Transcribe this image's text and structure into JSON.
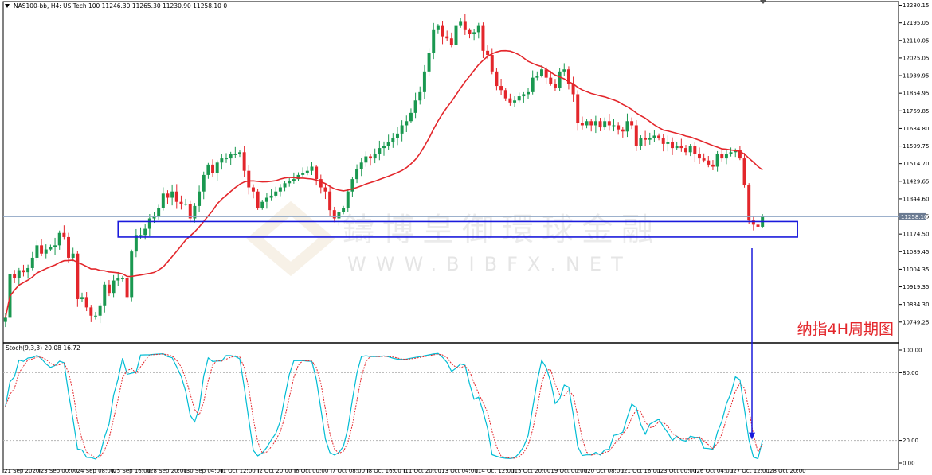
{
  "header": {
    "title": "NAS100-bb, H4:  US Tech 100  11246.30 11265.30 11230.90 11258.10  0",
    "stoch_label": "Stoch(9,3,3) 20.08 16.72"
  },
  "annotation_cn": "纳指4H周期图",
  "watermark": {
    "cn": "鑄博皇御環球金融",
    "en": "WWW.BIBFX.NET"
  },
  "colors": {
    "bull": "#1a9850",
    "bear": "#e3262b",
    "ma": "#e3262b",
    "stoch_k": "#00bcd4",
    "stoch_d": "#e3262b",
    "zone": "#1a1adc",
    "arrow": "#1a1adc"
  },
  "chart_data": [
    {
      "type": "candlestick",
      "symbol": "NAS100-bb",
      "timeframe": "H4",
      "last_price": "11258.10",
      "ylim": [
        10660,
        12290
      ],
      "y_ticks": [
        "12280.15",
        "12195.05",
        "12110.05",
        "12025.05",
        "11939.95",
        "11854.95",
        "11769.85",
        "11684.80",
        "11599.75",
        "11514.70",
        "11429.65",
        "11344.60",
        "11259.55",
        "11174.50",
        "11089.45",
        "11004.35",
        "10919.35",
        "10834.30",
        "10749.25"
      ],
      "x_ticks": [
        "21 Sep 2020",
        "23 Sep 00:00",
        "24 Sep 08:00",
        "25 Sep 16:00",
        "28 Sep 20:00",
        "30 Sep 04:00",
        "1 Oct 12:00",
        "2 Oct 20:00",
        "6 Oct 00:00",
        "7 Oct 08:00",
        "8 Oct 16:00",
        "11 Oct 20:00",
        "13 Oct 04:00",
        "14 Oct 12:00",
        "15 Oct 20:00",
        "19 Oct 00:00",
        "20 Oct 08:00",
        "21 Oct 16:00",
        "23 Oct 00:00",
        "26 Oct 04:00",
        "27 Oct 12:00",
        "28 Oct 20:00"
      ],
      "close": [
        10770,
        10980,
        10960,
        11000,
        10990,
        11010,
        11060,
        11120,
        11080,
        11100,
        11110,
        11120,
        11180,
        11160,
        11060,
        11080,
        10860,
        10870,
        10820,
        10780,
        10780,
        10830,
        10930,
        10890,
        10950,
        10960,
        10960,
        10870,
        11090,
        11170,
        11170,
        11200,
        11250,
        11260,
        11300,
        11370,
        11350,
        11380,
        11330,
        11320,
        11320,
        11250,
        11310,
        11380,
        11460,
        11510,
        11470,
        11520,
        11540,
        11540,
        11560,
        11560,
        11570,
        11480,
        11400,
        11380,
        11300,
        11330,
        11350,
        11360,
        11380,
        11400,
        11420,
        11430,
        11440,
        11460,
        11470,
        11480,
        11500,
        11440,
        11400,
        11380,
        11290,
        11250,
        11280,
        11300,
        11380,
        11440,
        11490,
        11520,
        11550,
        11540,
        11560,
        11590,
        11600,
        11620,
        11640,
        11660,
        11700,
        11720,
        11760,
        11820,
        11860,
        11960,
        12050,
        12160,
        12180,
        12130,
        12120,
        12090,
        12180,
        12200,
        12160,
        12140,
        12150,
        12180,
        12060,
        12040,
        11960,
        11890,
        11870,
        11830,
        11810,
        11820,
        11840,
        11850,
        11860,
        11930,
        11940,
        11970,
        11930,
        11900,
        11880,
        11960,
        11970,
        11900,
        11850,
        11710,
        11700,
        11720,
        11700,
        11720,
        11690,
        11720,
        11700,
        11700,
        11680,
        11670,
        11720,
        11700,
        11600,
        11640,
        11630,
        11640,
        11650,
        11640,
        11610,
        11620,
        11590,
        11600,
        11590,
        11570,
        11600,
        11560,
        11540,
        11530,
        11510,
        11500,
        11560,
        11540,
        11560,
        11570,
        11580,
        11540,
        11410,
        11240,
        11220,
        11210,
        11258
      ],
      "ma_period_note": "",
      "support_zone": [
        11160,
        11235
      ],
      "arrow_from": "support zone",
      "arrow_to": "stochastic oversold"
    },
    {
      "type": "line",
      "indicator": "Stochastic",
      "params": "9,3,3",
      "k_last": 20.08,
      "d_last": 16.72,
      "ylim": [
        0,
        100
      ],
      "levels": [
        80,
        20
      ],
      "y_ticks": [
        "100.00",
        "80.00",
        "20.00",
        "0.00"
      ]
    }
  ]
}
